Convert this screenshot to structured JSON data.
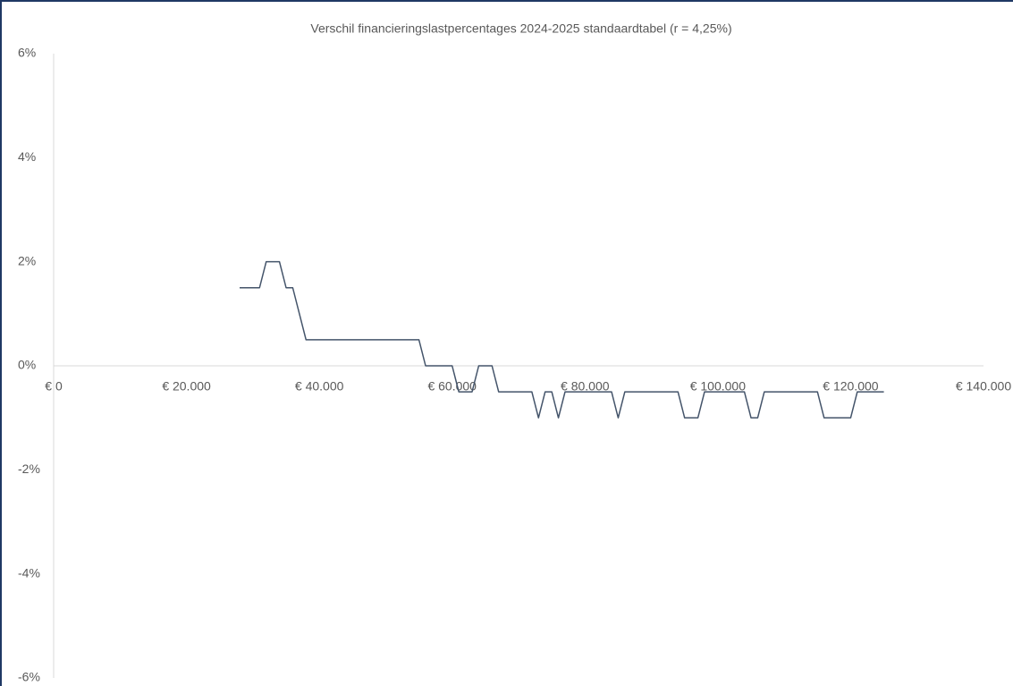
{
  "chart_data": {
    "type": "line",
    "title": "Verschil financieringslastpercentages 2024-2025 standaardtabel (r = 4,25%)",
    "x": [
      28000,
      31000,
      32000,
      34000,
      35000,
      36000,
      38000,
      55000,
      56000,
      60000,
      61000,
      63000,
      64000,
      66000,
      67000,
      72000,
      73000,
      74000,
      75000,
      76000,
      77000,
      84000,
      85000,
      86000,
      94000,
      95000,
      97000,
      98000,
      104000,
      105000,
      106000,
      107000,
      115000,
      116000,
      120000,
      121000,
      125000
    ],
    "series": [
      {
        "name": "Verschil",
        "color": "#44546a",
        "values": [
          1.5,
          1.5,
          2,
          2,
          1.5,
          1.5,
          0.5,
          0.5,
          0,
          0,
          -0.5,
          -0.5,
          0,
          0,
          -0.5,
          -0.5,
          -1,
          -0.5,
          -0.5,
          -1,
          -0.5,
          -0.5,
          -1,
          -0.5,
          -0.5,
          -1,
          -1,
          -0.5,
          -0.5,
          -1,
          -1,
          -0.5,
          -0.5,
          -1,
          -1,
          -0.5,
          -0.5
        ]
      }
    ],
    "xlim": [
      0,
      140000
    ],
    "xticks": [
      {
        "value": 0,
        "label": "€ 0"
      },
      {
        "value": 20000,
        "label": "€ 20.000"
      },
      {
        "value": 40000,
        "label": "€ 40.000"
      },
      {
        "value": 60000,
        "label": "€ 60.000"
      },
      {
        "value": 80000,
        "label": "€ 80.000"
      },
      {
        "value": 100000,
        "label": "€ 100.000"
      },
      {
        "value": 120000,
        "label": "€ 120.000"
      },
      {
        "value": 140000,
        "label": "€ 140.000"
      }
    ],
    "ylim": [
      -6,
      6
    ],
    "yticks": [
      {
        "value": -6,
        "label": "-6%"
      },
      {
        "value": -4,
        "label": "-4%"
      },
      {
        "value": -2,
        "label": "-2%"
      },
      {
        "value": 0,
        "label": "0%"
      },
      {
        "value": 2,
        "label": "2%"
      },
      {
        "value": 4,
        "label": "4%"
      },
      {
        "value": 6,
        "label": "6%"
      }
    ],
    "grid": false
  }
}
